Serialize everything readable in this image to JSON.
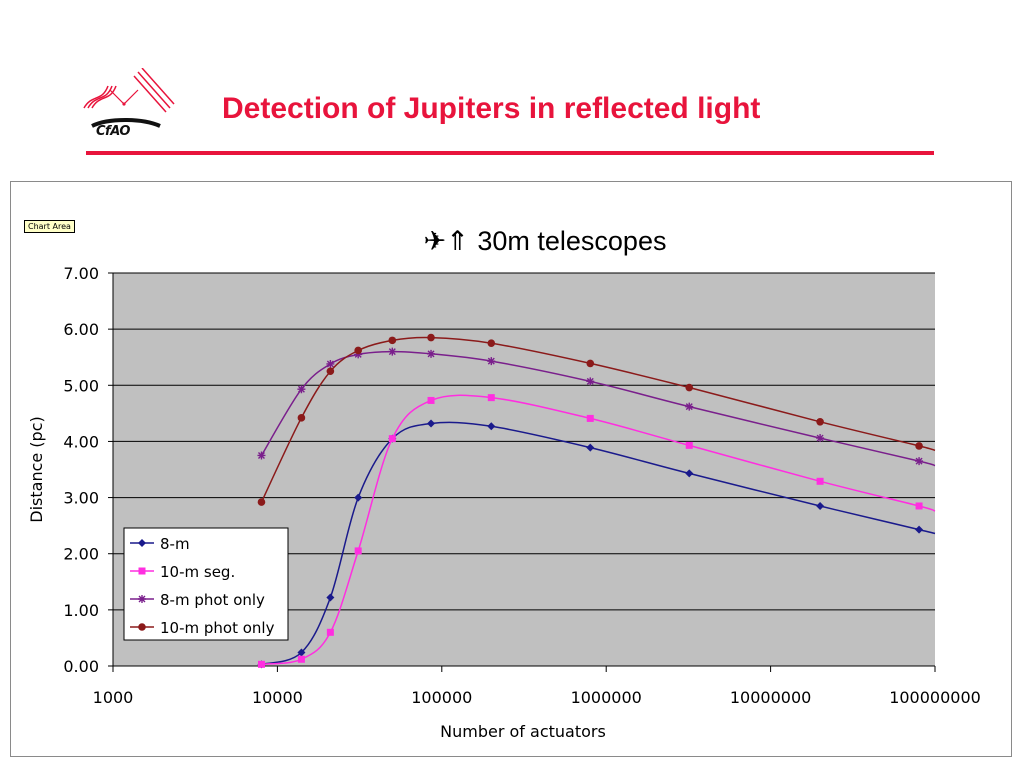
{
  "slide": {
    "title": "Detection of Jupiters in reflected light",
    "logo_text": "CfAO",
    "chart_area_tag": "Chart Area",
    "accent_color": "#e8143c"
  },
  "chart_data": {
    "type": "line",
    "title_symbols": "✈⇑",
    "title": "30m telescopes",
    "xlabel": "Number of actuators",
    "ylabel": "Distance (pc)",
    "x_scale": "log",
    "xlim": [
      1000,
      100000000
    ],
    "ylim": [
      0,
      7
    ],
    "x_ticks": [
      1000,
      10000,
      100000,
      1000000,
      10000000,
      100000000
    ],
    "x_tick_labels": [
      "1000",
      "10000",
      "100000",
      "1000000",
      "10000000",
      "100000000"
    ],
    "y_ticks": [
      0,
      1,
      2,
      3,
      4,
      5,
      6,
      7
    ],
    "y_tick_labels": [
      "0.00",
      "1.00",
      "2.00",
      "3.00",
      "4.00",
      "5.00",
      "6.00",
      "7.00"
    ],
    "grid": "horizontal",
    "plot_background": "#c0c0c0",
    "legend_position": "lower-left",
    "series": [
      {
        "name": "8-m",
        "color": "#1a1a8c",
        "marker": "diamond",
        "points": [
          [
            8000,
            0.03
          ],
          [
            14000,
            0.24
          ],
          [
            21000,
            1.22
          ],
          [
            31000,
            3.0
          ],
          [
            50000,
            4.05
          ],
          [
            86000,
            4.32
          ],
          [
            200000,
            4.27
          ],
          [
            800000,
            3.89
          ],
          [
            3200000,
            3.43
          ],
          [
            20000000,
            2.85
          ],
          [
            80000000,
            2.43
          ]
        ],
        "tail": [
          100000000,
          2.36
        ]
      },
      {
        "name": "10-m seg.",
        "color": "#ff2ee0",
        "marker": "square",
        "points": [
          [
            8000,
            0.03
          ],
          [
            14000,
            0.12
          ],
          [
            21000,
            0.6
          ],
          [
            31000,
            2.05
          ],
          [
            50000,
            4.05
          ],
          [
            86000,
            4.73
          ],
          [
            200000,
            4.78
          ],
          [
            800000,
            4.41
          ],
          [
            3200000,
            3.93
          ],
          [
            20000000,
            3.29
          ],
          [
            80000000,
            2.85
          ]
        ],
        "tail": [
          100000000,
          2.76
        ]
      },
      {
        "name": "8-m phot only",
        "color": "#7a1f8c",
        "marker": "asterisk",
        "points": [
          [
            8000,
            3.75
          ],
          [
            14000,
            4.93
          ],
          [
            21000,
            5.38
          ],
          [
            31000,
            5.55
          ],
          [
            50000,
            5.6
          ],
          [
            86000,
            5.56
          ],
          [
            200000,
            5.43
          ],
          [
            800000,
            5.07
          ],
          [
            3200000,
            4.62
          ],
          [
            20000000,
            4.06
          ],
          [
            80000000,
            3.65
          ]
        ],
        "tail": [
          100000000,
          3.57
        ]
      },
      {
        "name": "10-m phot only",
        "color": "#8b1a1a",
        "marker": "circle",
        "points": [
          [
            8000,
            2.92
          ],
          [
            14000,
            4.42
          ],
          [
            21000,
            5.25
          ],
          [
            31000,
            5.62
          ],
          [
            50000,
            5.8
          ],
          [
            86000,
            5.85
          ],
          [
            200000,
            5.75
          ],
          [
            800000,
            5.39
          ],
          [
            3200000,
            4.96
          ],
          [
            20000000,
            4.35
          ],
          [
            80000000,
            3.92
          ]
        ],
        "tail": [
          100000000,
          3.84
        ]
      }
    ]
  }
}
